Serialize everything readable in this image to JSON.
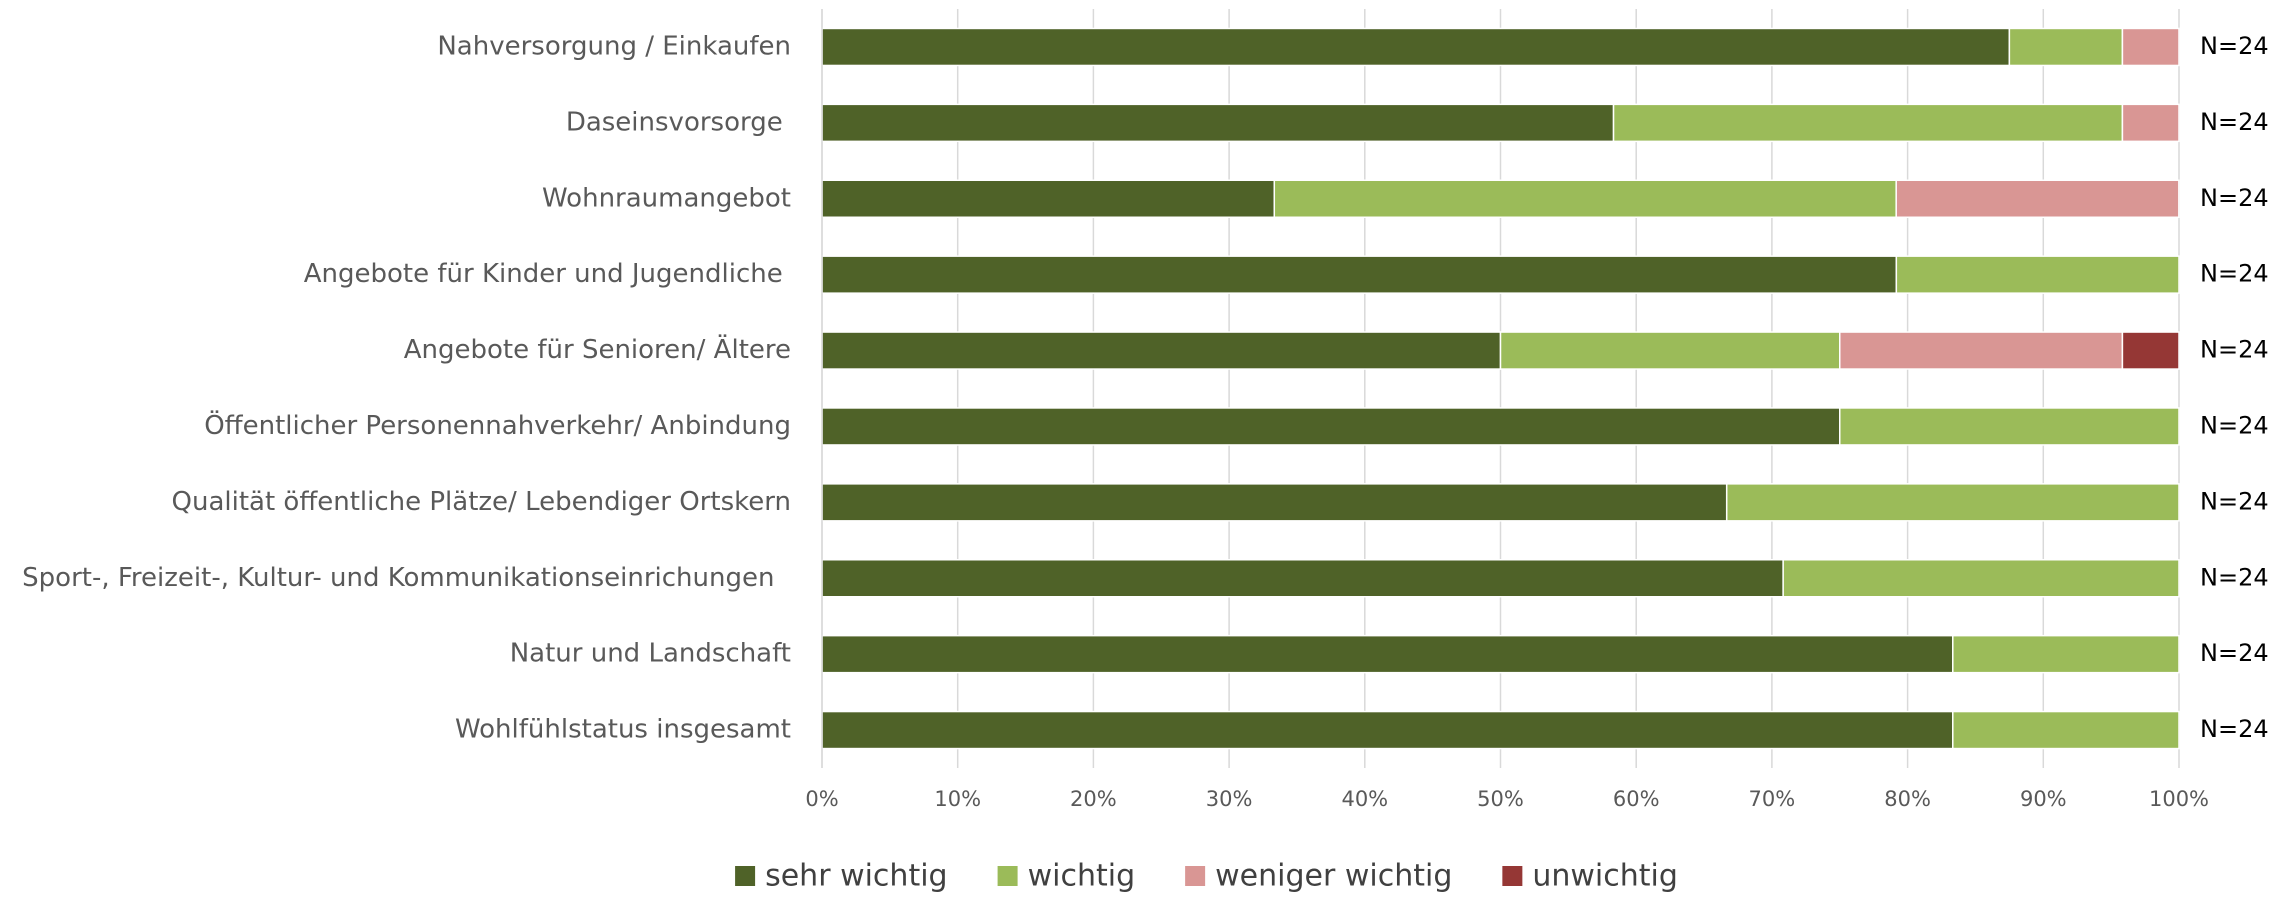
{
  "chart_data": {
    "type": "stacked_bar_horizontal",
    "categories": [
      "Nahversorgung / Einkaufen",
      "Daseinsvorsorge ",
      "Wohnraumangebot",
      "Angebote für Kinder und Jugendliche ",
      "Angebote für Senioren/ Ältere",
      "Öffentlicher Personennahverkehr/ Anbindung",
      "Qualität öffentliche Plätze/ Lebendiger Ortskern",
      "Sport-, Freizeit-, Kultur- und Kommunikationseinrichungen  ",
      "Natur und Landschaft",
      "Wohlfühlstatus insgesamt"
    ],
    "series": [
      {
        "name": "sehr wichtig",
        "color": "#4f6228",
        "values": [
          87.5,
          58.33,
          33.33,
          79.17,
          50,
          75,
          66.67,
          70.83,
          83.33,
          83.33
        ]
      },
      {
        "name": "wichtig",
        "color": "#9bbb59",
        "values": [
          8.33,
          37.5,
          45.83,
          20.83,
          25,
          25,
          33.33,
          29.17,
          16.67,
          16.67
        ]
      },
      {
        "name": "weniger wichtig",
        "color": "#d99694",
        "values": [
          4.17,
          4.17,
          20.83,
          0,
          20.83,
          0,
          0,
          0,
          0,
          0
        ]
      },
      {
        "name": "unwichtig",
        "color": "#953735",
        "values": [
          0,
          0,
          0,
          0,
          4.17,
          0,
          0,
          0,
          0,
          0
        ]
      }
    ],
    "annotations": [
      "N=24",
      "N=24",
      "N=24",
      "N=24",
      "N=24",
      "N=24",
      "N=24",
      "N=24",
      "N=24",
      "N=24"
    ],
    "xlim": [
      0,
      100
    ],
    "xticks": [
      {
        "value": 0,
        "label": "0%"
      },
      {
        "value": 10,
        "label": "10%"
      },
      {
        "value": 20,
        "label": "20%"
      },
      {
        "value": 30,
        "label": "30%"
      },
      {
        "value": 40,
        "label": "40%"
      },
      {
        "value": 50,
        "label": "50%"
      },
      {
        "value": 60,
        "label": "60%"
      },
      {
        "value": 70,
        "label": "70%"
      },
      {
        "value": 80,
        "label": "80%"
      },
      {
        "value": 90,
        "label": "90%"
      },
      {
        "value": 100,
        "label": "100%"
      }
    ],
    "grid": true,
    "legend": "bottom"
  }
}
